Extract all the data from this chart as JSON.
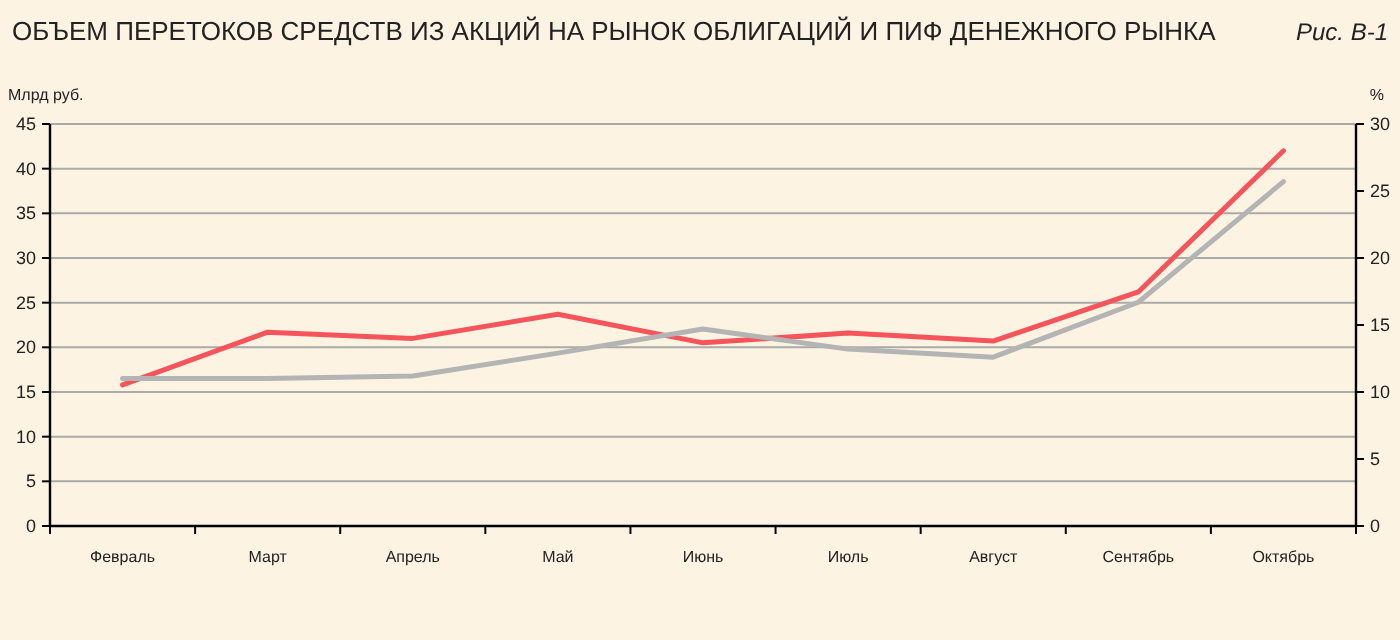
{
  "chart_data": {
    "type": "line",
    "title": "ОБЪЕМ ПЕРЕТОКОВ СРЕДСТВ ИЗ АКЦИЙ НА РЫНОК ОБЛИГАЦИЙ И ПИФ ДЕНЕЖНОГО РЫНКА",
    "subtitle": "Рис. В-1",
    "ylabel": "Млрд руб.",
    "y2label": "%",
    "categories": [
      "Февраль",
      "Март",
      "Апрель",
      "Май",
      "Июнь",
      "Июль",
      "Август",
      "Сентябрь",
      "Октябрь"
    ],
    "series": [
      {
        "color": "#f5555a",
        "values": [
          15.8,
          21.7,
          21,
          23.7,
          20.5,
          21.6,
          20.7,
          26.2,
          42
        ]
      },
      {
        "color": "#b4b4b4",
        "axis": "y2",
        "values": [
          11,
          11,
          11.2,
          12.9,
          14.7,
          13.2,
          12.6,
          16.7,
          25.7
        ]
      }
    ],
    "ylim": [
      0,
      45
    ],
    "yticks": [
      0,
      5,
      10,
      15,
      20,
      25,
      30,
      35,
      40,
      45
    ],
    "y2lim": [
      0,
      30
    ],
    "y2ticks": [
      0,
      5,
      10,
      15,
      20,
      25,
      30
    ],
    "grid": "y"
  }
}
